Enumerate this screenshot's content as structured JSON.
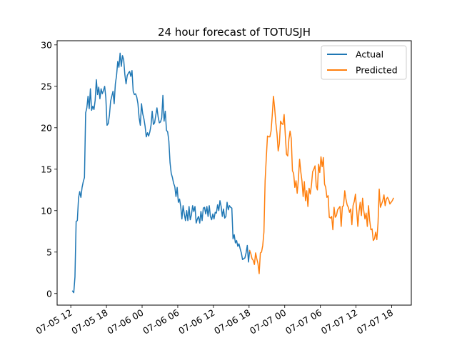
{
  "chart_data": {
    "type": "line",
    "title": "24 hour forecast of TOTUSJH",
    "xlabel": "",
    "ylabel": "",
    "x_tick_labels": [
      "07-05 12",
      "07-05 18",
      "07-06 00",
      "07-06 06",
      "07-06 12",
      "07-06 18",
      "07-07 00",
      "07-07 06",
      "07-07 12",
      "07-07 18"
    ],
    "x_tick_hours": [
      0,
      6,
      12,
      18,
      24,
      30,
      36,
      42,
      48,
      54
    ],
    "xlim_hours": [
      -2.3,
      57.3
    ],
    "ylim": [
      -1.4,
      30.5
    ],
    "y_ticks": [
      0,
      5,
      10,
      15,
      20,
      25,
      30
    ],
    "x_unit": "hours after 07-05 12",
    "legend_position": "top-right",
    "grid": false,
    "series": [
      {
        "name": "Actual",
        "color": "#1f77b4",
        "points": [
          [
            0.3,
            0.3
          ],
          [
            0.5,
            0.1
          ],
          [
            0.7,
            2.0
          ],
          [
            0.9,
            8.7
          ],
          [
            1.1,
            8.8
          ],
          [
            1.3,
            11.5
          ],
          [
            1.5,
            12.3
          ],
          [
            1.7,
            11.6
          ],
          [
            1.9,
            12.8
          ],
          [
            2.1,
            13.5
          ],
          [
            2.3,
            14.0
          ],
          [
            2.5,
            21.8
          ],
          [
            2.7,
            22.4
          ],
          [
            2.9,
            23.8
          ],
          [
            3.1,
            22.3
          ],
          [
            3.3,
            24.7
          ],
          [
            3.5,
            22.1
          ],
          [
            3.7,
            22.6
          ],
          [
            3.9,
            22.2
          ],
          [
            4.1,
            23.3
          ],
          [
            4.3,
            25.8
          ],
          [
            4.5,
            24.0
          ],
          [
            4.7,
            24.9
          ],
          [
            4.9,
            23.5
          ],
          [
            5.1,
            24.7
          ],
          [
            5.3,
            24.1
          ],
          [
            5.5,
            24.5
          ],
          [
            5.7,
            25.0
          ],
          [
            5.9,
            23.6
          ],
          [
            6.1,
            20.3
          ],
          [
            6.3,
            20.5
          ],
          [
            6.5,
            21.5
          ],
          [
            6.7,
            23.2
          ],
          [
            6.9,
            23.8
          ],
          [
            7.1,
            24.4
          ],
          [
            7.3,
            22.9
          ],
          [
            7.5,
            25.3
          ],
          [
            7.7,
            26.3
          ],
          [
            7.9,
            28.0
          ],
          [
            8.1,
            27.3
          ],
          [
            8.3,
            29.0
          ],
          [
            8.5,
            27.4
          ],
          [
            8.7,
            28.7
          ],
          [
            8.9,
            28.2
          ],
          [
            9.1,
            26.4
          ],
          [
            9.3,
            25.3
          ],
          [
            9.5,
            26.3
          ],
          [
            9.7,
            26.6
          ],
          [
            9.9,
            26.8
          ],
          [
            10.1,
            26.2
          ],
          [
            10.3,
            26.9
          ],
          [
            10.5,
            24.4
          ],
          [
            10.7,
            24.0
          ],
          [
            10.9,
            24.1
          ],
          [
            11.1,
            23.7
          ],
          [
            11.3,
            22.9
          ],
          [
            11.5,
            21.2
          ],
          [
            11.7,
            20.3
          ],
          [
            11.9,
            22.9
          ],
          [
            12.1,
            21.7
          ],
          [
            12.3,
            21.1
          ],
          [
            12.5,
            20.2
          ],
          [
            12.7,
            18.9
          ],
          [
            12.9,
            19.4
          ],
          [
            13.1,
            19.0
          ],
          [
            13.3,
            19.5
          ],
          [
            13.5,
            20.3
          ],
          [
            13.7,
            22.0
          ],
          [
            13.9,
            20.4
          ],
          [
            14.1,
            20.6
          ],
          [
            14.3,
            21.5
          ],
          [
            14.5,
            22.4
          ],
          [
            14.7,
            21.3
          ],
          [
            14.9,
            20.6
          ],
          [
            15.1,
            20.7
          ],
          [
            15.3,
            21.2
          ],
          [
            15.5,
            23.9
          ],
          [
            15.7,
            20.8
          ],
          [
            15.9,
            22.0
          ],
          [
            16.1,
            19.7
          ],
          [
            16.3,
            19.5
          ],
          [
            16.5,
            18.4
          ],
          [
            16.7,
            15.8
          ],
          [
            16.9,
            14.5
          ],
          [
            17.1,
            14.0
          ],
          [
            17.3,
            13.3
          ],
          [
            17.5,
            12.9
          ],
          [
            17.7,
            11.7
          ],
          [
            17.9,
            12.8
          ],
          [
            18.1,
            11.0
          ],
          [
            18.3,
            11.4
          ],
          [
            18.5,
            10.5
          ],
          [
            18.7,
            9.0
          ],
          [
            18.9,
            10.6
          ],
          [
            19.1,
            9.6
          ],
          [
            19.3,
            8.8
          ],
          [
            19.5,
            10.0
          ],
          [
            19.7,
            8.8
          ],
          [
            19.9,
            10.5
          ],
          [
            20.1,
            8.9
          ],
          [
            20.3,
            9.5
          ],
          [
            20.5,
            10.6
          ],
          [
            20.7,
            9.9
          ],
          [
            20.9,
            10.5
          ],
          [
            21.1,
            8.5
          ],
          [
            21.3,
            9.0
          ],
          [
            21.5,
            9.3
          ],
          [
            21.7,
            8.5
          ],
          [
            21.9,
            9.9
          ],
          [
            22.1,
            8.8
          ],
          [
            22.3,
            10.3
          ],
          [
            22.5,
            10.4
          ],
          [
            22.7,
            9.6
          ],
          [
            22.9,
            10.5
          ],
          [
            23.1,
            9.3
          ],
          [
            23.3,
            10.6
          ],
          [
            23.5,
            9.3
          ],
          [
            23.7,
            8.9
          ],
          [
            23.9,
            9.6
          ],
          [
            24.1,
            9.0
          ],
          [
            24.3,
            9.8
          ],
          [
            24.5,
            9.7
          ],
          [
            24.7,
            10.7
          ],
          [
            24.9,
            10.0
          ],
          [
            25.1,
            11.2
          ],
          [
            25.3,
            10.5
          ],
          [
            25.5,
            9.3
          ],
          [
            25.7,
            10.2
          ],
          [
            25.9,
            9.1
          ],
          [
            26.1,
            9.3
          ],
          [
            26.3,
            11.0
          ],
          [
            26.5,
            10.1
          ],
          [
            26.7,
            10.6
          ],
          [
            26.9,
            10.4
          ],
          [
            27.1,
            10.3
          ],
          [
            27.3,
            6.6
          ],
          [
            27.5,
            7.1
          ],
          [
            27.7,
            6.1
          ],
          [
            27.9,
            6.4
          ],
          [
            28.1,
            5.7
          ],
          [
            28.3,
            6.0
          ],
          [
            28.5,
            5.4
          ],
          [
            28.7,
            4.9
          ],
          [
            28.9,
            4.1
          ],
          [
            29.1,
            4.2
          ],
          [
            29.3,
            4.3
          ],
          [
            29.5,
            4.9
          ],
          [
            29.7,
            5.8
          ],
          [
            29.9,
            3.8
          ],
          [
            30.1,
            5.2
          ]
        ]
      },
      {
        "name": "Predicted",
        "color": "#ff7f0e",
        "points": [
          [
            30.1,
            5.2
          ],
          [
            30.3,
            4.8
          ],
          [
            30.5,
            4.2
          ],
          [
            30.7,
            4.0
          ],
          [
            30.9,
            3.5
          ],
          [
            31.1,
            4.9
          ],
          [
            31.3,
            4.2
          ],
          [
            31.5,
            3.6
          ],
          [
            31.7,
            2.4
          ],
          [
            31.9,
            4.9
          ],
          [
            32.1,
            5.0
          ],
          [
            32.3,
            5.8
          ],
          [
            32.5,
            7.4
          ],
          [
            32.7,
            13.6
          ],
          [
            32.9,
            16.4
          ],
          [
            33.1,
            19.0
          ],
          [
            33.3,
            18.9
          ],
          [
            33.5,
            18.9
          ],
          [
            33.7,
            19.6
          ],
          [
            33.9,
            21.5
          ],
          [
            34.1,
            23.8
          ],
          [
            34.3,
            22.4
          ],
          [
            34.5,
            20.6
          ],
          [
            34.7,
            19.3
          ],
          [
            34.9,
            17.2
          ],
          [
            35.1,
            18.1
          ],
          [
            35.3,
            20.8
          ],
          [
            35.5,
            20.5
          ],
          [
            35.7,
            20.4
          ],
          [
            35.9,
            21.6
          ],
          [
            36.1,
            19.1
          ],
          [
            36.3,
            16.8
          ],
          [
            36.5,
            16.6
          ],
          [
            36.7,
            18.6
          ],
          [
            36.9,
            19.6
          ],
          [
            37.1,
            18.7
          ],
          [
            37.3,
            14.8
          ],
          [
            37.5,
            14.5
          ],
          [
            37.7,
            12.8
          ],
          [
            37.9,
            13.6
          ],
          [
            38.1,
            12.1
          ],
          [
            38.3,
            13.8
          ],
          [
            38.5,
            16.2
          ],
          [
            38.7,
            14.7
          ],
          [
            38.9,
            13.6
          ],
          [
            39.1,
            11.7
          ],
          [
            39.3,
            13.5
          ],
          [
            39.5,
            11.2
          ],
          [
            39.7,
            12.4
          ],
          [
            39.9,
            10.5
          ],
          [
            40.1,
            12.7
          ],
          [
            40.3,
            12.0
          ],
          [
            40.5,
            13.1
          ],
          [
            40.7,
            14.7
          ],
          [
            40.9,
            15.0
          ],
          [
            41.1,
            15.4
          ],
          [
            41.3,
            13.0
          ],
          [
            41.5,
            12.5
          ],
          [
            41.7,
            15.6
          ],
          [
            41.9,
            14.6
          ],
          [
            42.1,
            16.5
          ],
          [
            42.3,
            15.3
          ],
          [
            42.5,
            16.4
          ],
          [
            42.7,
            13.2
          ],
          [
            42.9,
            12.8
          ],
          [
            43.1,
            11.6
          ],
          [
            43.3,
            11.8
          ],
          [
            43.5,
            9.2
          ],
          [
            43.7,
            9.1
          ],
          [
            43.9,
            9.3
          ],
          [
            44.1,
            7.7
          ],
          [
            44.3,
            10.4
          ],
          [
            44.5,
            9.2
          ],
          [
            44.7,
            9.4
          ],
          [
            44.9,
            10.1
          ],
          [
            45.1,
            10.3
          ],
          [
            45.3,
            10.5
          ],
          [
            45.5,
            8.1
          ],
          [
            45.7,
            10.5
          ],
          [
            45.9,
            10.6
          ],
          [
            46.1,
            12.4
          ],
          [
            46.3,
            11.4
          ],
          [
            46.5,
            10.7
          ],
          [
            46.7,
            10.4
          ],
          [
            46.9,
            9.8
          ],
          [
            47.1,
            10.2
          ],
          [
            47.3,
            8.3
          ],
          [
            47.5,
            10.6
          ],
          [
            47.7,
            11.1
          ],
          [
            47.9,
            12.0
          ],
          [
            48.1,
            10.1
          ],
          [
            48.3,
            8.1
          ],
          [
            48.5,
            9.9
          ],
          [
            48.7,
            11.0
          ],
          [
            48.9,
            9.4
          ],
          [
            49.1,
            11.5
          ],
          [
            49.3,
            10.0
          ],
          [
            49.5,
            9.0
          ],
          [
            49.7,
            9.7
          ],
          [
            49.9,
            8.1
          ],
          [
            50.1,
            10.6
          ],
          [
            50.3,
            8.8
          ],
          [
            50.5,
            7.7
          ],
          [
            50.7,
            7.8
          ],
          [
            50.9,
            6.4
          ],
          [
            51.1,
            6.6
          ],
          [
            51.3,
            7.4
          ],
          [
            51.5,
            6.5
          ],
          [
            51.7,
            8.5
          ],
          [
            51.9,
            12.6
          ],
          [
            52.1,
            10.4
          ],
          [
            52.3,
            10.8
          ],
          [
            52.5,
            11.2
          ],
          [
            52.7,
            11.9
          ],
          [
            52.9,
            10.6
          ],
          [
            53.1,
            11.4
          ],
          [
            53.3,
            11.6
          ],
          [
            53.5,
            11.3
          ],
          [
            53.7,
            10.8
          ],
          [
            53.9,
            11.0
          ],
          [
            54.1,
            11.2
          ],
          [
            54.3,
            11.5
          ]
        ]
      }
    ]
  }
}
